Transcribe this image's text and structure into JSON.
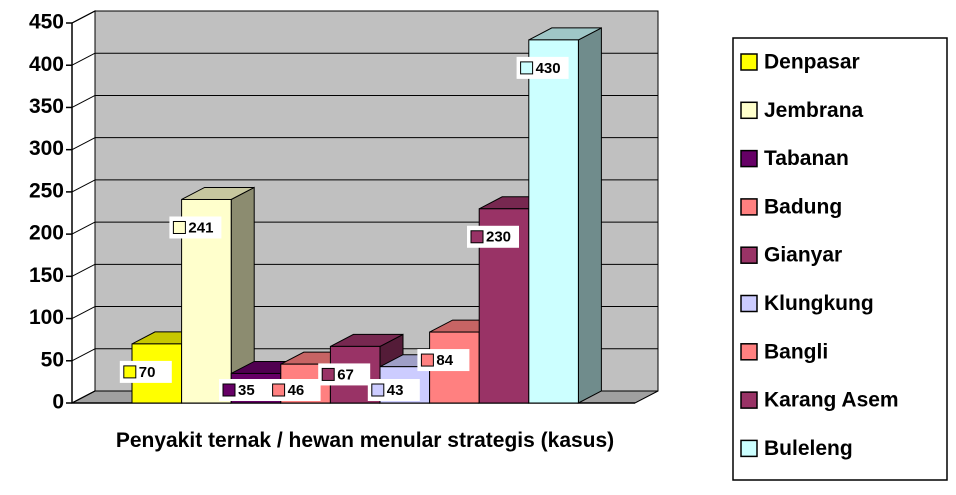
{
  "chart_data": {
    "type": "bar3d",
    "x_label": "Penyakit ternak / hewan menular strategis (kasus)",
    "series": [
      {
        "name": "Denpasar",
        "color": "#ffff00",
        "values": [
          70
        ]
      },
      {
        "name": "Jembrana",
        "color": "#ffffcc",
        "values": [
          241
        ]
      },
      {
        "name": "Tabanan",
        "color": "#660066",
        "values": [
          35
        ]
      },
      {
        "name": "Badung",
        "color": "#ff8080",
        "values": [
          46
        ]
      },
      {
        "name": "Gianyar",
        "color": "#993366",
        "values": [
          67
        ]
      },
      {
        "name": "Klungkung",
        "color": "#ccccff",
        "values": [
          43
        ]
      },
      {
        "name": "Bangli",
        "color": "#ff8080",
        "values": [
          84
        ]
      },
      {
        "name": "Karang Asem",
        "color": "#993366",
        "values": [
          230
        ]
      },
      {
        "name": "Buleleng",
        "color": "#ccffff",
        "values": [
          430
        ]
      }
    ],
    "ylim": [
      0,
      450
    ],
    "yticks": [
      0,
      50,
      100,
      150,
      200,
      250,
      300,
      350,
      400,
      450
    ],
    "grid": true,
    "legend": "right"
  }
}
